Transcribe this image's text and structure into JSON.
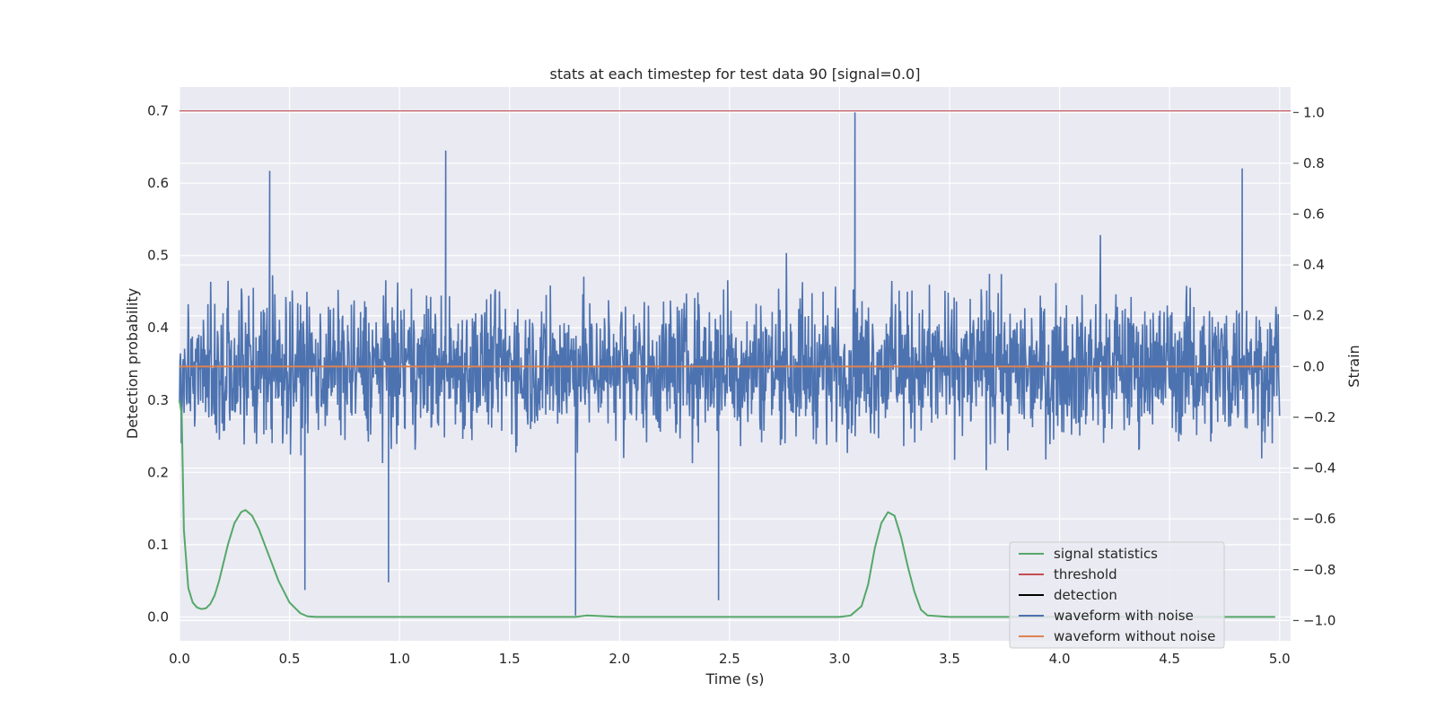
{
  "chart_data": {
    "type": "line",
    "title": "stats at each timestep for test data 90 [signal=0.0]",
    "xlabel": "Time (s)",
    "ylabel_left": "Detection probability",
    "ylabel_right": "Strain",
    "xlim": [
      0.0,
      5.05
    ],
    "ylim_left": [
      -0.033,
      0.733
    ],
    "ylim_right": [
      -1.08,
      1.1
    ],
    "xticks": [
      "0.0",
      "0.5",
      "1.0",
      "1.5",
      "2.0",
      "2.5",
      "3.0",
      "3.5",
      "4.0",
      "4.5",
      "5.0"
    ],
    "yticks_left": [
      "0.0",
      "0.1",
      "0.2",
      "0.3",
      "0.4",
      "0.5",
      "0.6",
      "0.7"
    ],
    "yticks_right": [
      "−1.0",
      "−0.8",
      "−0.6",
      "−0.4",
      "−0.2",
      "0.0",
      "0.2",
      "0.4",
      "0.6",
      "0.8",
      "1.0"
    ],
    "grid": true,
    "legend_position": "lower-right",
    "colors": {
      "signal_statistics": "#55a868",
      "threshold": "#c44e52",
      "detection": "#000000",
      "waveform_with_noise": "#4c72b0",
      "waveform_without_noise": "#dd8452",
      "plot_background": "#eaeaf2",
      "grid": "#ffffff"
    },
    "series": [
      {
        "name": "signal statistics",
        "axis": "left",
        "x": [
          0.0,
          0.01,
          0.02,
          0.04,
          0.06,
          0.08,
          0.1,
          0.12,
          0.14,
          0.16,
          0.18,
          0.2,
          0.22,
          0.25,
          0.28,
          0.3,
          0.33,
          0.36,
          0.4,
          0.45,
          0.5,
          0.55,
          0.58,
          0.62,
          1.8,
          1.85,
          2.0,
          3.0,
          3.05,
          3.1,
          3.13,
          3.16,
          3.19,
          3.22,
          3.25,
          3.28,
          3.31,
          3.34,
          3.37,
          3.4,
          3.5,
          4.98
        ],
        "y": [
          0.3,
          0.28,
          0.12,
          0.04,
          0.02,
          0.013,
          0.011,
          0.012,
          0.018,
          0.03,
          0.05,
          0.075,
          0.1,
          0.13,
          0.145,
          0.148,
          0.14,
          0.122,
          0.09,
          0.05,
          0.02,
          0.005,
          0.001,
          0.0,
          0.0,
          0.002,
          0.0,
          0.0,
          0.002,
          0.015,
          0.045,
          0.095,
          0.13,
          0.145,
          0.14,
          0.11,
          0.07,
          0.035,
          0.01,
          0.002,
          0.0,
          0.0
        ]
      },
      {
        "name": "threshold",
        "axis": "left",
        "x": [
          0.0,
          5.05
        ],
        "y": [
          0.7,
          0.7
        ]
      },
      {
        "name": "detection",
        "axis": "left",
        "x": [],
        "y": []
      },
      {
        "name": "waveform with noise",
        "axis": "right",
        "x": [
          0.0,
          5.0
        ],
        "y": [
          0.0,
          0.0
        ],
        "envelope": {
          "typical_peak": 0.4,
          "max": 1.0,
          "min": -0.98,
          "notable_spikes": [
            {
              "x": 1.21,
              "y": 0.85
            },
            {
              "x": 3.07,
              "y": 1.0
            },
            {
              "x": 1.8,
              "y": -0.98
            },
            {
              "x": 2.45,
              "y": -0.92
            },
            {
              "x": 0.95,
              "y": -0.85
            },
            {
              "x": 0.57,
              "y": -0.88
            },
            {
              "x": 4.83,
              "y": 0.78
            },
            {
              "x": 0.41,
              "y": 0.77
            }
          ]
        }
      },
      {
        "name": "waveform without noise",
        "axis": "right",
        "x": [
          0.0,
          5.0
        ],
        "y": [
          0.0,
          0.0
        ]
      }
    ]
  }
}
